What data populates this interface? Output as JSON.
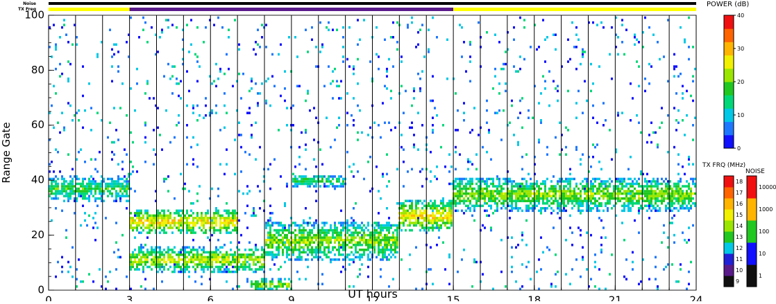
{
  "chart_data": {
    "type": "heatmap",
    "xlabel": "UT hours",
    "ylabel": "Range Gate",
    "x_ticks": [
      0,
      3,
      6,
      9,
      12,
      15,
      18,
      21,
      24
    ],
    "x_tick_labels": [
      "0",
      "3",
      "6",
      "9",
      "12",
      "15",
      "18",
      "21",
      "24"
    ],
    "y_ticks": [
      0,
      20,
      40,
      60,
      80,
      100
    ],
    "y_tick_labels": [
      "0",
      "20",
      "40",
      "60",
      "80",
      "100"
    ],
    "xlim": [
      0,
      24
    ],
    "ylim": [
      0,
      100
    ],
    "top_strips": {
      "noise_label": "Noise",
      "txfreq_label": "TX Freq",
      "noise_color": "#000000",
      "txfreq_segments": [
        {
          "start": 0,
          "end": 3,
          "color": "#ffff00"
        },
        {
          "start": 3,
          "end": 15,
          "color": "#5a1a8a"
        },
        {
          "start": 15,
          "end": 24,
          "color": "#ffff00"
        }
      ]
    },
    "power_colorbar": {
      "title": "POWER (dB)",
      "min": 0,
      "max": 40,
      "tick_labels": [
        "0",
        "10",
        "20",
        "30",
        "40"
      ],
      "tick_values": [
        0,
        10,
        20,
        30,
        40
      ],
      "colors": [
        "#1010ff",
        "#1e78ff",
        "#00c8e6",
        "#00d878",
        "#20c820",
        "#9ae600",
        "#f0f000",
        "#ffb400",
        "#ff6400",
        "#f01010"
      ]
    },
    "txfreq_colorbar": {
      "title": "TX FRQ (MHz)",
      "tick_labels": [
        "9",
        "10",
        "11",
        "12",
        "13",
        "14",
        "15",
        "16",
        "17",
        "18"
      ],
      "colors": [
        "#101010",
        "#5a1a8a",
        "#2020d8",
        "#00c8e6",
        "#20c820",
        "#9ae600",
        "#f0f000",
        "#ffb400",
        "#ff6400",
        "#f01010"
      ]
    },
    "noise_colorbar": {
      "title": "NOISE",
      "tick_labels": [
        "1",
        "10",
        "100",
        "1000",
        "10000"
      ],
      "colors": [
        "#101010",
        "#1010ff",
        "#20c820",
        "#ffb400",
        "#f01010"
      ]
    },
    "vertical_lines_ut": [
      0,
      1,
      2,
      3,
      4,
      5,
      6,
      7,
      8,
      9,
      10,
      11,
      12,
      13,
      14,
      15,
      16,
      17,
      18,
      19,
      20,
      21,
      22,
      23,
      24
    ],
    "echo_bands": [
      {
        "x_start": 0,
        "x_end": 3,
        "gate_center": 37,
        "gate_width": 8,
        "power_db": 17
      },
      {
        "x_start": 3,
        "x_end": 7,
        "gate_center": 25,
        "gate_width": 8,
        "power_db": 28
      },
      {
        "x_start": 3,
        "x_end": 8,
        "gate_center": 11,
        "gate_width": 8,
        "power_db": 24
      },
      {
        "x_start": 8,
        "x_end": 13,
        "gate_center": 18,
        "gate_width": 12,
        "power_db": 22
      },
      {
        "x_start": 9,
        "x_end": 11,
        "gate_center": 40,
        "gate_width": 4,
        "power_db": 17
      },
      {
        "x_start": 13,
        "x_end": 15,
        "gate_center": 27,
        "gate_width": 10,
        "power_db": 28
      },
      {
        "x_start": 15,
        "x_end": 24,
        "gate_center": 35,
        "gate_width": 10,
        "power_db": 22
      },
      {
        "x_start": 7.5,
        "x_end": 9,
        "gate_center": 2,
        "gate_width": 4,
        "power_db": 22
      }
    ]
  }
}
